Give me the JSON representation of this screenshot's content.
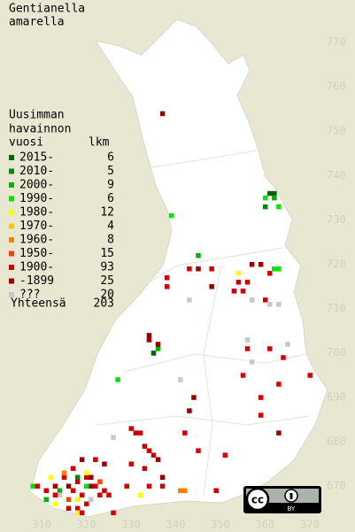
{
  "title": [
    "Gentianella",
    "amarella"
  ],
  "legend": {
    "heading": [
      "Uusimman",
      "havainnon",
      "vuosi"
    ],
    "count_heading": "lkm",
    "rows": [
      {
        "label": "2015-",
        "count": 6,
        "color": "#006400"
      },
      {
        "label": "2010-",
        "count": 5,
        "color": "#008c00"
      },
      {
        "label": "2000-",
        "count": 9,
        "color": "#00b400"
      },
      {
        "label": "1990-",
        "count": 6,
        "color": "#00e600"
      },
      {
        "label": "1980-",
        "count": 12,
        "color": "#ffff00"
      },
      {
        "label": "1970-",
        "count": 4,
        "color": "#ffc800"
      },
      {
        "label": "1960-",
        "count": 8,
        "color": "#ff8000"
      },
      {
        "label": "1950-",
        "count": 15,
        "color": "#ff4000"
      },
      {
        "label": "1900-",
        "count": 93,
        "color": "#d20000"
      },
      {
        "label": "-1899",
        "count": 25,
        "color": "#9a0000"
      },
      {
        "label": "???",
        "count": 20,
        "color": "#c8c8c8"
      }
    ],
    "total_label": "Yhteensä",
    "total": 203
  },
  "yticks": [
    670,
    680,
    690,
    700,
    710,
    720,
    730,
    740,
    750,
    760,
    770
  ],
  "xticks": [
    310,
    320,
    330,
    340,
    350,
    360,
    370
  ],
  "license": {
    "cc": "cc",
    "by": "BY"
  },
  "squares": [
    [
      337,
      754,
      9
    ],
    [
      361,
      736,
      0
    ],
    [
      362,
      736,
      0
    ],
    [
      360,
      735,
      3
    ],
    [
      360,
      733,
      1
    ],
    [
      362,
      735,
      2
    ],
    [
      363,
      733,
      3
    ],
    [
      339,
      731,
      3
    ],
    [
      345,
      722,
      2
    ],
    [
      343,
      719,
      8
    ],
    [
      345,
      719,
      9
    ],
    [
      348,
      719,
      8
    ],
    [
      338,
      717,
      8
    ],
    [
      338,
      715,
      8
    ],
    [
      348,
      715,
      9
    ],
    [
      343,
      712,
      10
    ],
    [
      357,
      720,
      9
    ],
    [
      359,
      720,
      9
    ],
    [
      354,
      718,
      4
    ],
    [
      354,
      716,
      8
    ],
    [
      356,
      716,
      8
    ],
    [
      353,
      714,
      8
    ],
    [
      355,
      714,
      8
    ],
    [
      357,
      712,
      10
    ],
    [
      360,
      712,
      8
    ],
    [
      361,
      711,
      10
    ],
    [
      363,
      711,
      10
    ],
    [
      362,
      719,
      3
    ],
    [
      363,
      719,
      3
    ],
    [
      361,
      718,
      8
    ],
    [
      334,
      704,
      9
    ],
    [
      334,
      703,
      9
    ],
    [
      336,
      701,
      2
    ],
    [
      335,
      700,
      0
    ],
    [
      336,
      702,
      9
    ],
    [
      327,
      694,
      3
    ],
    [
      356,
      701,
      8
    ],
    [
      357,
      698,
      10
    ],
    [
      361,
      701,
      8
    ],
    [
      364,
      699,
      8
    ],
    [
      365,
      702,
      10
    ],
    [
      356,
      703,
      10
    ],
    [
      370,
      695,
      8
    ],
    [
      363,
      693,
      8
    ],
    [
      355,
      695,
      8
    ],
    [
      359,
      690,
      8
    ],
    [
      344,
      690,
      9
    ],
    [
      343,
      687,
      9
    ],
    [
      341,
      694,
      10
    ],
    [
      359,
      686,
      8
    ],
    [
      363,
      682,
      9
    ],
    [
      330,
      683,
      8
    ],
    [
      331,
      682,
      8
    ],
    [
      332,
      682,
      8
    ],
    [
      326,
      681,
      10
    ],
    [
      342,
      682,
      8
    ],
    [
      334,
      678,
      8
    ],
    [
      335,
      677,
      8
    ],
    [
      333,
      679,
      8
    ],
    [
      336,
      676,
      9
    ],
    [
      345,
      678,
      8
    ],
    [
      351,
      677,
      8
    ],
    [
      319,
      676,
      9
    ],
    [
      322,
      676,
      8
    ],
    [
      324,
      675,
      9
    ],
    [
      330,
      675,
      8
    ],
    [
      333,
      674,
      8
    ],
    [
      337,
      672,
      9
    ],
    [
      334,
      670,
      8
    ],
    [
      332,
      668,
      4
    ],
    [
      329,
      670,
      8
    ],
    [
      325,
      668,
      8
    ],
    [
      326,
      664,
      8
    ],
    [
      341,
      669,
      6
    ],
    [
      342,
      669,
      6
    ],
    [
      337,
      670,
      8
    ],
    [
      349,
      669,
      8
    ],
    [
      308,
      670,
      3
    ],
    [
      309,
      670,
      8
    ],
    [
      311,
      669,
      8
    ],
    [
      312,
      672,
      4
    ],
    [
      313,
      670,
      9
    ],
    [
      314,
      669,
      2
    ],
    [
      315,
      672,
      8
    ],
    [
      316,
      670,
      9
    ],
    [
      316,
      667,
      7
    ],
    [
      317,
      669,
      8
    ],
    [
      318,
      672,
      1
    ],
    [
      318,
      671,
      8
    ],
    [
      319,
      668,
      8
    ],
    [
      320,
      666,
      8
    ],
    [
      321,
      670,
      9
    ],
    [
      322,
      670,
      8
    ],
    [
      323,
      668,
      8
    ],
    [
      324,
      669,
      8
    ],
    [
      318,
      667,
      4
    ],
    [
      316,
      665,
      8
    ],
    [
      318,
      665,
      8
    ],
    [
      321,
      667,
      10
    ],
    [
      314,
      668,
      10
    ],
    [
      313,
      668,
      8
    ],
    [
      320,
      670,
      3
    ],
    [
      320,
      672,
      8
    ],
    [
      315,
      673,
      6
    ],
    [
      317,
      674,
      8
    ],
    [
      320,
      673,
      4
    ],
    [
      321,
      672,
      9
    ],
    [
      323,
      671,
      7
    ],
    [
      311,
      667,
      2
    ],
    [
      313,
      666,
      4
    ],
    [
      318,
      664,
      4
    ],
    [
      319,
      664,
      8
    ]
  ]
}
